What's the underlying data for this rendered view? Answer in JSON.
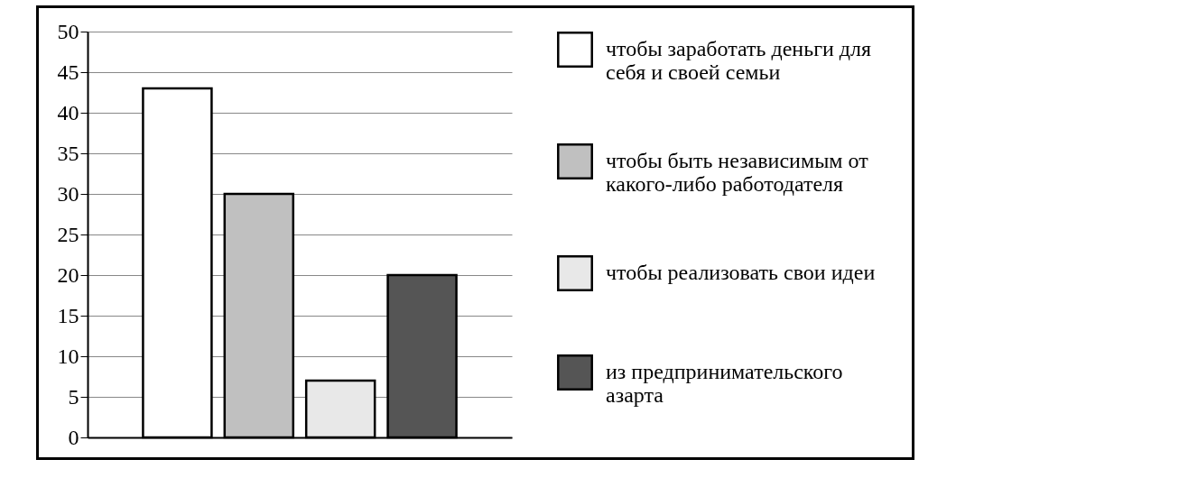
{
  "chart_data": {
    "type": "bar",
    "categories": [
      null,
      null,
      null,
      null
    ],
    "series": [
      {
        "name": "чтобы заработать деньги для себя и своей семьи",
        "color": "#ffffff",
        "values": [
          43,
          null,
          null,
          null
        ]
      },
      {
        "name": "чтобы быть независимым от какого-либо работодателя",
        "color": "#c0c0c0",
        "values": [
          null,
          30,
          null,
          null
        ]
      },
      {
        "name": "чтобы реализовать свои идеи",
        "color": "#e8e8e8",
        "values": [
          null,
          null,
          7,
          null
        ]
      },
      {
        "name": "из предпринимательского азарта",
        "color": "#555555",
        "values": [
          null,
          null,
          null,
          20
        ]
      }
    ],
    "ylim": [
      0,
      50
    ],
    "yticks": [
      0,
      5,
      10,
      15,
      20,
      25,
      30,
      35,
      40,
      45,
      50
    ],
    "grid": "y",
    "legend": "right"
  }
}
